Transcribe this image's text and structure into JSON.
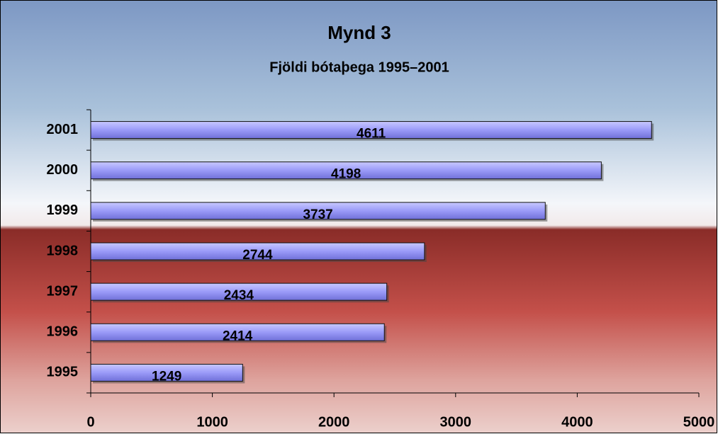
{
  "chart_data": {
    "type": "bar",
    "orientation": "horizontal",
    "title": "Mynd 3",
    "subtitle": "Fjöldi bótaþega 1995–2001",
    "categories": [
      "1995",
      "1996",
      "1997",
      "1998",
      "1999",
      "2000",
      "2001"
    ],
    "values": [
      1249,
      2414,
      2434,
      2744,
      3737,
      4198,
      4611
    ],
    "color": "#9999ff",
    "xlim": [
      0,
      5000
    ],
    "xticks": [
      0,
      1000,
      2000,
      3000,
      4000,
      5000
    ],
    "grid": false
  }
}
